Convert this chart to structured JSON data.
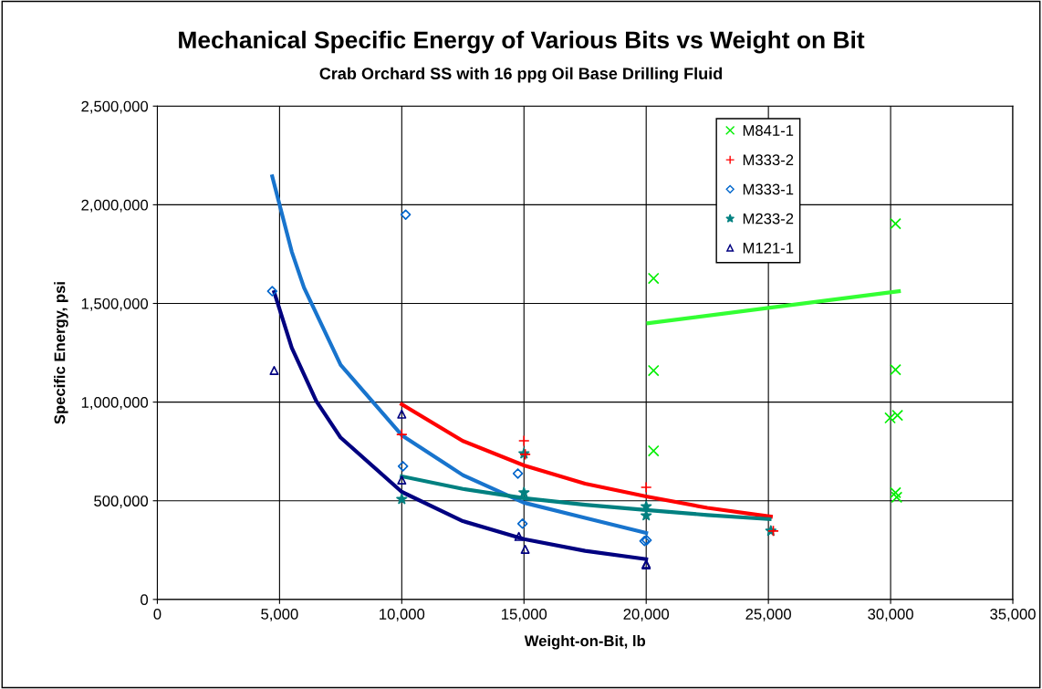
{
  "chart_data": {
    "type": "scatter",
    "title": "Mechanical Specific Energy of Various Bits vs Weight on Bit",
    "subtitle": "Crab Orchard SS with 16 ppg Oil Base Drilling Fluid",
    "xlabel": "Weight-on-Bit, lb",
    "ylabel": "Specific Energy, psi",
    "xlim": [
      0,
      35000
    ],
    "xticks": [
      {
        "value": 0,
        "label": "0"
      },
      {
        "value": 5000,
        "label": "5,000"
      },
      {
        "value": 10000,
        "label": "10,000"
      },
      {
        "value": 15000,
        "label": "15,000"
      },
      {
        "value": 20000,
        "label": "20,000"
      },
      {
        "value": 25000,
        "label": "25,000"
      },
      {
        "value": 30000,
        "label": "30,000"
      },
      {
        "value": 35000,
        "label": "35,000"
      }
    ],
    "ylim": [
      0,
      2500000
    ],
    "yticks": [
      {
        "value": 0,
        "label": "0"
      },
      {
        "value": 500000,
        "label": "500,000"
      },
      {
        "value": 1000000,
        "label": "1,000,000"
      },
      {
        "value": 1500000,
        "label": "1,500,000"
      },
      {
        "value": 2000000,
        "label": "2,000,000"
      },
      {
        "value": 2500000,
        "label": "2,500,000"
      }
    ],
    "grid": true,
    "legend": "top right",
    "series": [
      {
        "name": "M841-1",
        "marker": "cross",
        "color": "#00ee00",
        "x": [
          20300,
          20300,
          20300,
          30200,
          30200,
          29980,
          30280,
          30200,
          30250
        ],
        "values": [
          1627000,
          1160000,
          753000,
          1904000,
          1164000,
          920000,
          933000,
          541000,
          518000
        ]
      },
      {
        "name": "M333-2",
        "marker": "plus",
        "color": "#ff0000",
        "x": [
          10000,
          15000,
          15050,
          20000,
          25200
        ],
        "values": [
          836000,
          804000,
          735000,
          568000,
          347000
        ]
      },
      {
        "name": "M333-1",
        "marker": "diamond",
        "color": "#0066cc",
        "x": [
          4700,
          10160,
          10050,
          14750,
          14940,
          19930,
          20020
        ],
        "values": [
          1562000,
          1950000,
          675000,
          638000,
          384000,
          296000,
          300000
        ]
      },
      {
        "name": "M233-2",
        "marker": "star",
        "color": "#008080",
        "x": [
          10000,
          15000,
          15000,
          20000,
          20000,
          25100
        ],
        "values": [
          508000,
          739000,
          541000,
          471000,
          425000,
          347000
        ]
      },
      {
        "name": "M121-1",
        "marker": "triangle",
        "color": "#000080",
        "x": [
          4780,
          10000,
          10000,
          14790,
          15050,
          20000,
          20000
        ],
        "values": [
          1160000,
          939000,
          605000,
          319000,
          254000,
          175000,
          180000
        ]
      },
      {
        "type": "line",
        "marker": "none",
        "color": "#33ff33",
        "x": [
          20090,
          30340
        ],
        "values": [
          1400000,
          1562000
        ]
      },
      {
        "type": "line",
        "marker": "none",
        "color": "#ff0000",
        "x": [
          10000,
          12500,
          15000,
          17500,
          20000,
          22500,
          25100
        ],
        "values": [
          989000,
          803000,
          679000,
          587000,
          522000,
          464000,
          420000
        ]
      },
      {
        "type": "line",
        "marker": "none",
        "color": "#1874cd",
        "x": [
          4700,
          5500,
          6000,
          7500,
          10000,
          12500,
          15000,
          17500,
          20000
        ],
        "values": [
          2144000,
          1762000,
          1580000,
          1188000,
          832000,
          630000,
          490000,
          413000,
          337000
        ]
      },
      {
        "type": "line",
        "marker": "none",
        "color": "#008080",
        "x": [
          10000,
          12500,
          15000,
          17500,
          20000,
          22500,
          25050
        ],
        "values": [
          624000,
          560000,
          513000,
          480000,
          453000,
          428000,
          407000
        ]
      },
      {
        "type": "line",
        "marker": "none",
        "color": "#000080",
        "x": [
          4780,
          5500,
          6500,
          7500,
          10000,
          12500,
          15000,
          17500,
          20000
        ],
        "values": [
          1557000,
          1275000,
          1006000,
          820000,
          545000,
          397000,
          306000,
          246000,
          204000
        ]
      }
    ]
  }
}
